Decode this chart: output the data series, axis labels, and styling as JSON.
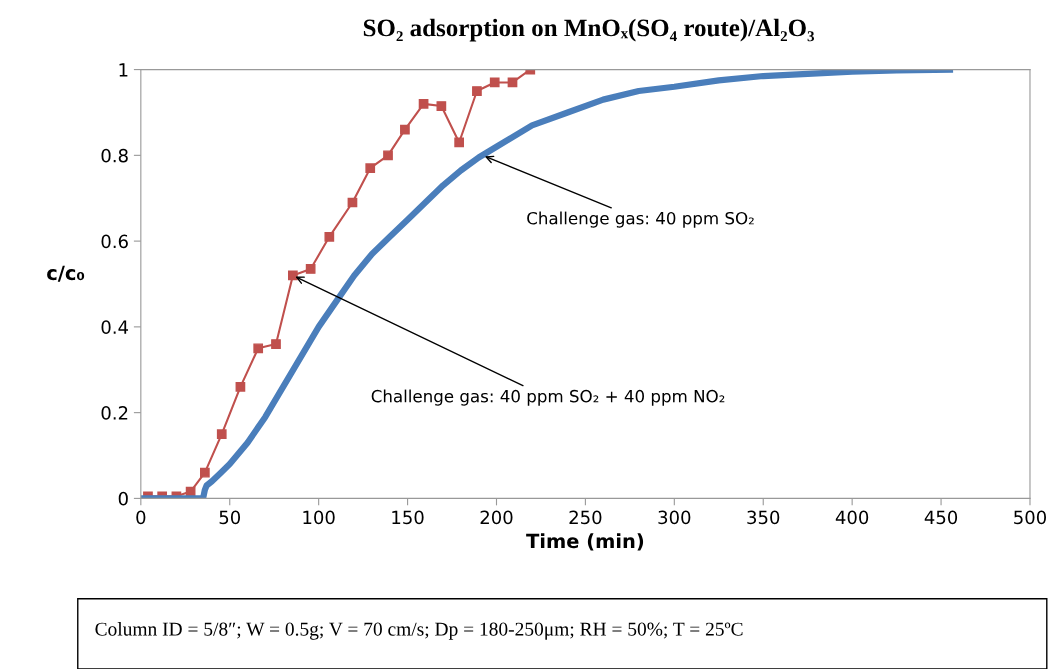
{
  "chart_data": {
    "type": "line",
    "title": "SO₂ adsorption on MnOₓ(SO₄ route)/Al₂O₃",
    "xlabel": "Time (min)",
    "ylabel": "c/c₀",
    "xlim": [
      0,
      500
    ],
    "xticks": [
      0,
      50,
      100,
      150,
      200,
      250,
      300,
      350,
      400,
      450,
      500
    ],
    "ylim": [
      0,
      1
    ],
    "yticks": [
      0,
      0.2,
      0.4,
      0.6,
      0.8,
      1
    ],
    "grid": false,
    "legend": false,
    "series": [
      {
        "color": "#c0504d",
        "marker": "square",
        "x": [
          4,
          12,
          20,
          28,
          36,
          45.5,
          56,
          66,
          76,
          85.5,
          95.5,
          106,
          119,
          129,
          139,
          148.5,
          159,
          169,
          179,
          189,
          199,
          209,
          219
        ],
        "values": [
          0.005,
          0.005,
          0.005,
          0.016,
          0.06,
          0.15,
          0.26,
          0.35,
          0.36,
          0.52,
          0.535,
          0.61,
          0.69,
          0.77,
          0.8,
          0.86,
          0.92,
          0.915,
          0.83,
          0.95,
          0.97,
          0.97,
          1.0
        ]
      },
      {
        "color": "#4a7ebb",
        "marker": "none",
        "x": [
          0,
          10,
          20,
          30,
          35,
          36,
          37,
          40,
          45,
          50,
          60,
          70,
          80,
          90,
          100,
          110,
          120,
          130,
          140,
          150,
          160,
          170,
          180,
          190,
          200,
          220,
          240,
          260,
          280,
          300,
          325,
          350,
          375,
          400,
          425,
          455
        ],
        "values": [
          0,
          0,
          0,
          0,
          0,
          0.02,
          0.03,
          0.04,
          0.06,
          0.08,
          0.13,
          0.19,
          0.26,
          0.33,
          0.4,
          0.46,
          0.52,
          0.57,
          0.61,
          0.65,
          0.69,
          0.73,
          0.765,
          0.795,
          0.82,
          0.87,
          0.9,
          0.93,
          0.95,
          0.96,
          0.975,
          0.985,
          0.99,
          0.995,
          0.998,
          1.0
        ]
      }
    ],
    "annotations": [
      {
        "text": "Challenge gas: 40 ppm SO₂",
        "x": 192,
        "y": 0.8
      },
      {
        "text": "Challenge gas: 40 ppm SO₂ + 40 ppm NO₂",
        "x": 85.5,
        "y": 0.52
      },
      "Column ID = 5/8″; W = 0.5g; V = 70 cm/s; Dp = 180-250μm; RH = 50%; T = 25ºC"
    ]
  }
}
